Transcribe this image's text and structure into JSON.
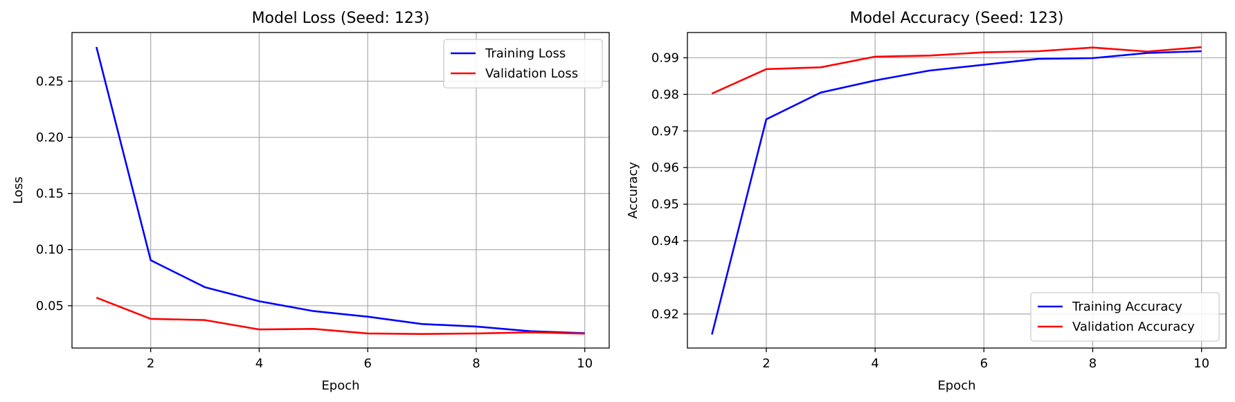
{
  "chart_data": [
    {
      "type": "line",
      "title": "Model Loss (Seed: 123)",
      "xlabel": "Epoch",
      "ylabel": "Loss",
      "x": [
        1,
        2,
        3,
        4,
        5,
        6,
        7,
        8,
        9,
        10
      ],
      "series": [
        {
          "name": "Training Loss",
          "color": "#0000ff",
          "values": [
            0.2805,
            0.0905,
            0.0665,
            0.054,
            0.0452,
            0.0402,
            0.0337,
            0.0315,
            0.0273,
            0.0255
          ]
        },
        {
          "name": "Validation Loss",
          "color": "#ff0000",
          "values": [
            0.0572,
            0.0383,
            0.0372,
            0.0289,
            0.0294,
            0.0253,
            0.0248,
            0.0253,
            0.0263,
            0.0251
          ]
        }
      ],
      "xlim": [
        0.55,
        10.45
      ],
      "ylim": [
        0.0123,
        0.2934
      ],
      "xticks": [
        2,
        4,
        6,
        8,
        10
      ],
      "xtick_labels": [
        "2",
        "4",
        "6",
        "8",
        "10"
      ],
      "yticks": [
        0.05,
        0.1,
        0.15,
        0.2,
        0.25
      ],
      "ytick_labels": [
        "0.05",
        "0.10",
        "0.15",
        "0.20",
        "0.25"
      ],
      "grid": true,
      "legend_position": "top-right"
    },
    {
      "type": "line",
      "title": "Model Accuracy (Seed: 123)",
      "xlabel": "Epoch",
      "ylabel": "Accuracy",
      "x": [
        1,
        2,
        3,
        4,
        5,
        6,
        7,
        8,
        9,
        10
      ],
      "series": [
        {
          "name": "Training Accuracy",
          "color": "#0000ff",
          "values": [
            0.9144,
            0.9732,
            0.9805,
            0.9838,
            0.9865,
            0.9881,
            0.9897,
            0.9899,
            0.9913,
            0.9918
          ]
        },
        {
          "name": "Validation Accuracy",
          "color": "#ff0000",
          "values": [
            0.9802,
            0.9869,
            0.9874,
            0.9903,
            0.9906,
            0.9915,
            0.9918,
            0.9928,
            0.9917,
            0.9929
          ]
        }
      ],
      "xlim": [
        0.55,
        10.45
      ],
      "ylim": [
        0.9107,
        0.9969
      ],
      "xticks": [
        2,
        4,
        6,
        8,
        10
      ],
      "xtick_labels": [
        "2",
        "4",
        "6",
        "8",
        "10"
      ],
      "yticks": [
        0.92,
        0.93,
        0.94,
        0.95,
        0.96,
        0.97,
        0.98,
        0.99
      ],
      "ytick_labels": [
        "0.92",
        "0.93",
        "0.94",
        "0.95",
        "0.96",
        "0.97",
        "0.98",
        "0.99"
      ],
      "grid": true,
      "legend_position": "bottom-right"
    }
  ]
}
